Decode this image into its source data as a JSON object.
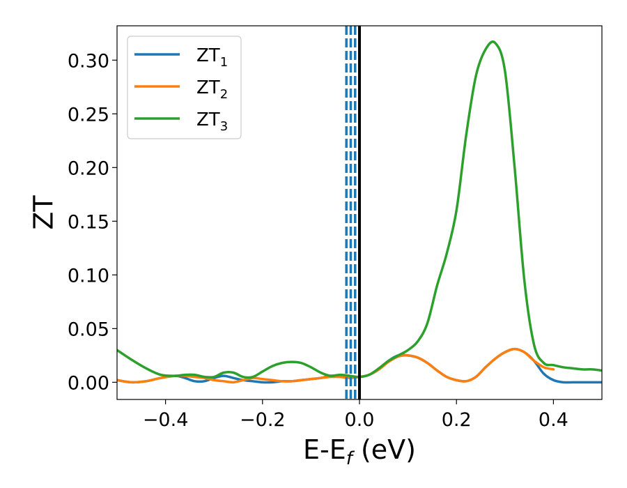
{
  "chart_data": {
    "type": "line",
    "xlabel": "E-E",
    "xlabel_sub": "f",
    "xlabel_unit": " (eV)",
    "ylabel": "ZT",
    "xlim": [
      -0.5,
      0.5
    ],
    "ylim": [
      -0.016,
      0.332
    ],
    "xticks": [
      -0.4,
      -0.2,
      0.0,
      0.2,
      0.4
    ],
    "xtick_labels": [
      "−0.4",
      "−0.2",
      "0.0",
      "0.2",
      "0.4"
    ],
    "yticks": [
      0.0,
      0.05,
      0.1,
      0.15,
      0.2,
      0.25,
      0.3
    ],
    "ytick_labels": [
      "0.00",
      "0.05",
      "0.10",
      "0.15",
      "0.20",
      "0.25",
      "0.30"
    ],
    "grid": false,
    "legend_position": "top-left",
    "vertical_lines": [
      {
        "x": 0.0,
        "style": "solid",
        "color": "#000000"
      },
      {
        "x": -0.027,
        "style": "dashed",
        "color": "#1f77b4"
      },
      {
        "x": -0.018,
        "style": "dashed",
        "color": "#1f77b4"
      },
      {
        "x": -0.009,
        "style": "dashed",
        "color": "#1f77b4"
      }
    ],
    "series": [
      {
        "name": "ZT",
        "name_sub": "1",
        "color": "#1f77b4",
        "x": [
          -0.5,
          -0.47,
          -0.44,
          -0.41,
          -0.38,
          -0.36,
          -0.34,
          -0.32,
          -0.3,
          -0.28,
          -0.26,
          -0.24,
          -0.22,
          -0.2,
          -0.18,
          -0.16,
          -0.14,
          -0.12,
          -0.1,
          -0.08,
          -0.06,
          -0.04,
          -0.02,
          0.0,
          0.02,
          0.04,
          0.06,
          0.08,
          0.1,
          0.12,
          0.14,
          0.16,
          0.18,
          0.2,
          0.22,
          0.24,
          0.26,
          0.28,
          0.3,
          0.32,
          0.34,
          0.36,
          0.38,
          0.4,
          0.42,
          0.44,
          0.46,
          0.48,
          0.5
        ],
        "values": [
          0.002,
          0.0,
          0.001,
          0.004,
          0.006,
          0.004,
          0.001,
          0.001,
          0.004,
          0.006,
          0.004,
          0.002,
          0.001,
          0.0,
          0.0,
          0.001,
          0.001,
          0.002,
          0.003,
          0.004,
          0.006,
          0.006,
          0.005,
          0.005,
          0.007,
          0.012,
          0.02,
          0.025,
          0.025,
          0.023,
          0.018,
          0.011,
          0.005,
          0.002,
          0.001,
          0.005,
          0.014,
          0.022,
          0.028,
          0.031,
          0.028,
          0.02,
          0.008,
          0.002,
          0.0,
          0.0,
          0.0,
          0.0,
          0.0
        ]
      },
      {
        "name": "ZT",
        "name_sub": "2",
        "color": "#ff7f0e",
        "x": [
          -0.5,
          -0.47,
          -0.44,
          -0.41,
          -0.38,
          -0.36,
          -0.34,
          -0.32,
          -0.3,
          -0.28,
          -0.26,
          -0.24,
          -0.22,
          -0.2,
          -0.18,
          -0.16,
          -0.14,
          -0.12,
          -0.1,
          -0.08,
          -0.06,
          -0.04,
          -0.02,
          0.0,
          0.02,
          0.04,
          0.06,
          0.08,
          0.1,
          0.12,
          0.14,
          0.16,
          0.18,
          0.2,
          0.22,
          0.24,
          0.26,
          0.28,
          0.3,
          0.32,
          0.34,
          0.36,
          0.38,
          0.4
        ],
        "values": [
          0.002,
          0.0,
          0.001,
          0.004,
          0.006,
          0.006,
          0.005,
          0.004,
          0.002,
          0.001,
          0.0,
          0.002,
          0.004,
          0.003,
          0.002,
          0.001,
          0.001,
          0.002,
          0.003,
          0.004,
          0.005,
          0.005,
          0.004,
          0.005,
          0.007,
          0.012,
          0.019,
          0.024,
          0.025,
          0.023,
          0.018,
          0.011,
          0.005,
          0.002,
          0.001,
          0.005,
          0.014,
          0.022,
          0.028,
          0.031,
          0.028,
          0.02,
          0.014,
          0.012
        ]
      },
      {
        "name": "ZT",
        "name_sub": "3",
        "color": "#2ca02c",
        "x": [
          -0.5,
          -0.47,
          -0.44,
          -0.41,
          -0.38,
          -0.36,
          -0.34,
          -0.32,
          -0.3,
          -0.28,
          -0.26,
          -0.24,
          -0.22,
          -0.2,
          -0.18,
          -0.16,
          -0.14,
          -0.12,
          -0.1,
          -0.08,
          -0.06,
          -0.04,
          -0.02,
          0.0,
          0.02,
          0.04,
          0.06,
          0.08,
          0.1,
          0.12,
          0.14,
          0.16,
          0.18,
          0.2,
          0.22,
          0.24,
          0.26,
          0.28,
          0.3,
          0.32,
          0.34,
          0.36,
          0.38,
          0.4,
          0.42,
          0.44,
          0.46,
          0.48,
          0.5
        ],
        "values": [
          0.03,
          0.021,
          0.013,
          0.007,
          0.006,
          0.007,
          0.007,
          0.005,
          0.005,
          0.009,
          0.009,
          0.005,
          0.005,
          0.01,
          0.015,
          0.018,
          0.019,
          0.018,
          0.014,
          0.009,
          0.006,
          0.007,
          0.006,
          0.005,
          0.007,
          0.013,
          0.02,
          0.025,
          0.03,
          0.038,
          0.055,
          0.09,
          0.12,
          0.16,
          0.23,
          0.285,
          0.31,
          0.316,
          0.29,
          0.2,
          0.095,
          0.035,
          0.018,
          0.016,
          0.014,
          0.013,
          0.012,
          0.012,
          0.011
        ]
      }
    ]
  }
}
